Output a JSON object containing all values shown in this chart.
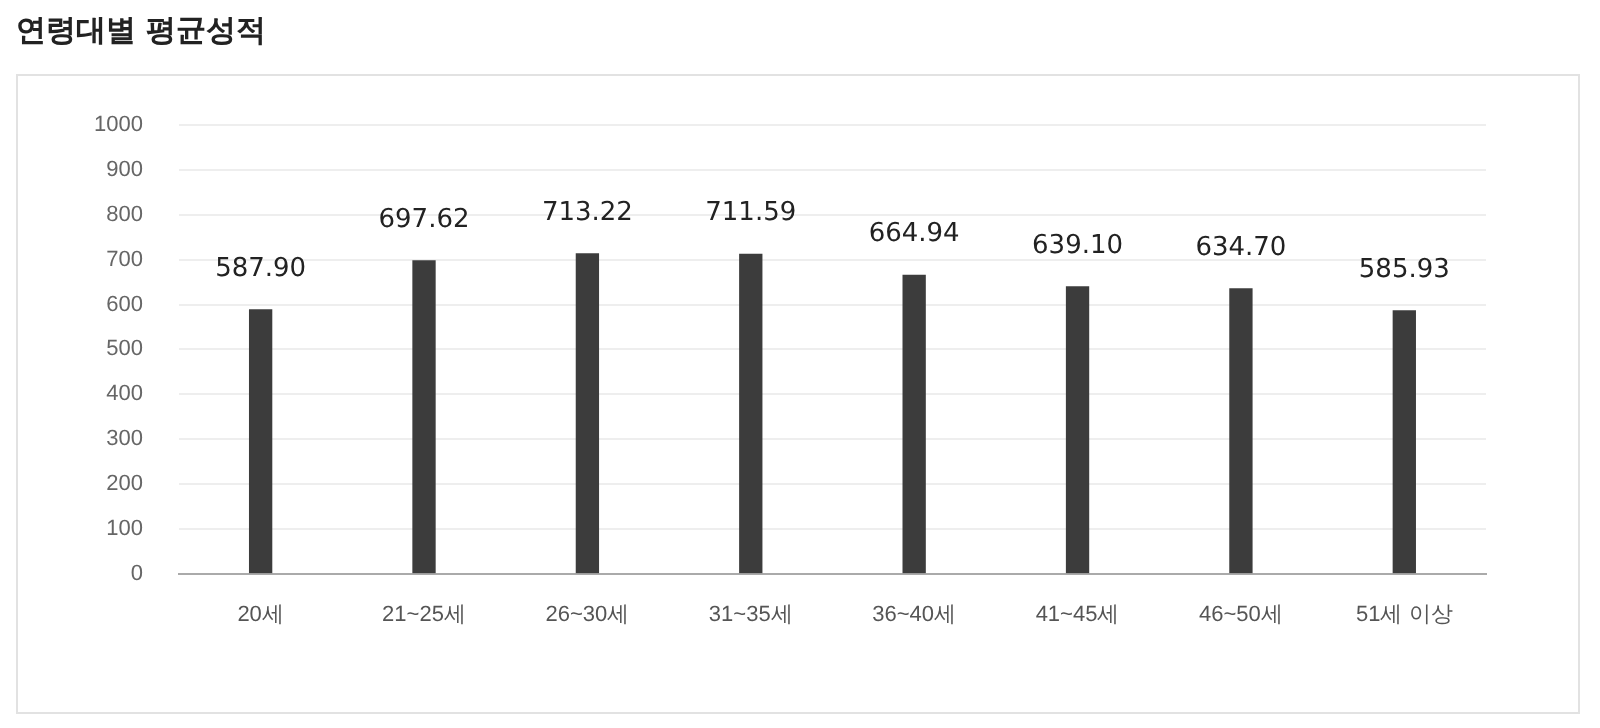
{
  "chart_data": {
    "type": "bar",
    "title": "연령대별 평균성적",
    "categories": [
      "20세",
      "21~25세",
      "26~30세",
      "31~35세",
      "36~40세",
      "41~45세",
      "46~50세",
      "51세 이상"
    ],
    "values": [
      587.9,
      697.62,
      713.22,
      711.59,
      664.94,
      639.1,
      634.7,
      585.93
    ],
    "value_labels": [
      "587.90",
      "697.62",
      "713.22",
      "711.59",
      "664.94",
      "639.10",
      "634.70",
      "585.93"
    ],
    "color": "#3c3c3c",
    "ylim": [
      0,
      1000
    ],
    "yticks": [
      0,
      100,
      200,
      300,
      400,
      500,
      600,
      700,
      800,
      900,
      1000
    ],
    "grid": "y",
    "legend": false
  }
}
